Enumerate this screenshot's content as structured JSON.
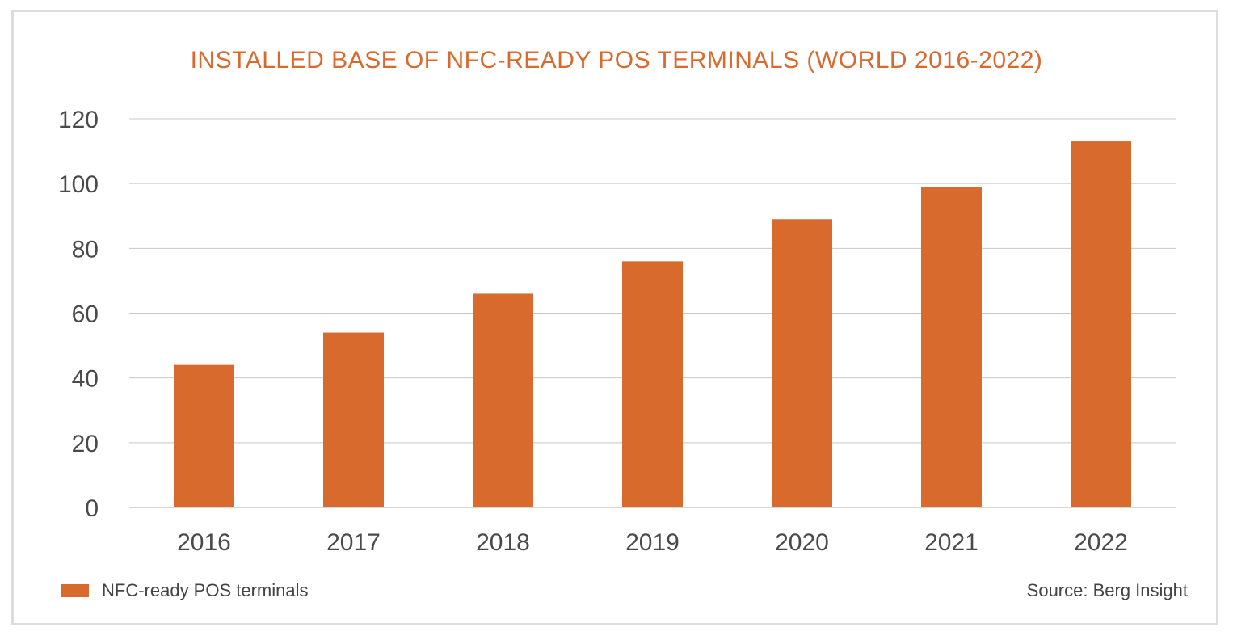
{
  "chart_data": {
    "type": "bar",
    "title": "INSTALLED BASE OF NFC-READY POS TERMINALS (WORLD 2016-2022)",
    "categories": [
      "2016",
      "2017",
      "2018",
      "2019",
      "2020",
      "2021",
      "2022"
    ],
    "series": [
      {
        "name": "NFC-ready POS terminals",
        "values": [
          44,
          54,
          66,
          76,
          89,
          99,
          113
        ]
      }
    ],
    "xlabel": "",
    "ylabel": "",
    "ylim": [
      0,
      120
    ],
    "yticks": [
      "0",
      "20",
      "40",
      "60",
      "80",
      "100",
      "120"
    ],
    "grid": true,
    "legend_position": "bottom-left",
    "source": "Source: Berg Insight",
    "colors": {
      "bar": "#d96a2e",
      "title": "#d96a2e",
      "grid": "#c8c8c8",
      "border": "#dcdcdc"
    }
  }
}
